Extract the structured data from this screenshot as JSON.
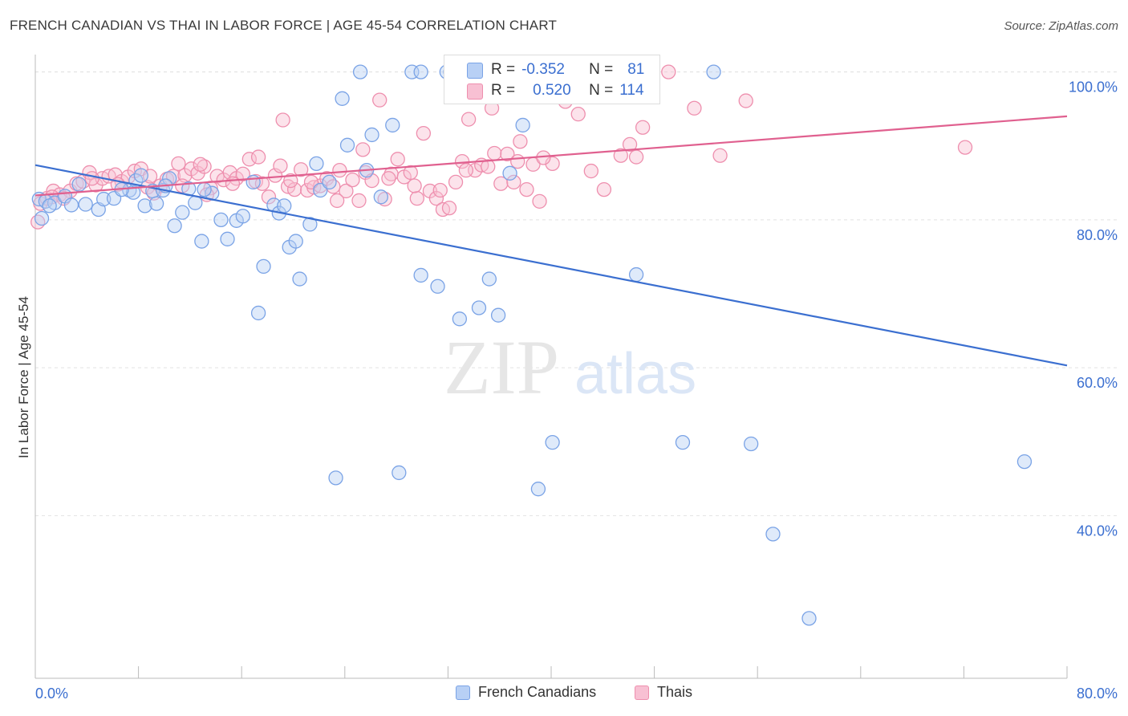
{
  "title": "FRENCH CANADIAN VS THAI IN LABOR FORCE | AGE 45-54 CORRELATION CHART",
  "source": "Source: ZipAtlas.com",
  "watermark": {
    "part1": "ZIP",
    "part2": "atlas"
  },
  "colors": {
    "blue_fill": "#b8d0f5",
    "blue_stroke": "#7aa3e6",
    "blue_line": "#3b6fd0",
    "pink_fill": "#f8c0d3",
    "pink_stroke": "#ee8fae",
    "pink_line": "#e0608f",
    "axis_text": "#3b6fd0",
    "grid": "#e2e2e2"
  },
  "legend": {
    "series1": {
      "r_label": "R =",
      "r_value": "-0.352",
      "n_label": "N =",
      "n_value": "81"
    },
    "series2": {
      "r_label": "R =",
      "r_value": "0.520",
      "n_label": "N =",
      "n_value": "114"
    }
  },
  "chart_data": {
    "type": "scatter",
    "title": "FRENCH CANADIAN VS THAI IN LABOR FORCE | AGE 45-54 CORRELATION CHART",
    "xlabel": "",
    "ylabel": "In Labor Force | Age 45-54",
    "xlim": [
      0,
      80
    ],
    "ylim": [
      18,
      103
    ],
    "x_tick_labels": [
      "0.0%",
      "80.0%"
    ],
    "y_ticks": [
      40,
      60,
      80,
      100
    ],
    "y_tick_labels": [
      "40.0%",
      "60.0%",
      "80.0%",
      "100.0%"
    ],
    "series": [
      {
        "name": "French Canadians",
        "r": -0.352,
        "n": 81,
        "trend": {
          "x": [
            0,
            80
          ],
          "y": [
            87.4,
            60.3
          ]
        },
        "points": [
          [
            0.3,
            82.8
          ],
          [
            0.8,
            82.5
          ],
          [
            1.5,
            82.3
          ],
          [
            2.3,
            83.2
          ],
          [
            2.8,
            82.0
          ],
          [
            3.4,
            84.8
          ],
          [
            4.9,
            81.4
          ],
          [
            5.3,
            82.8
          ],
          [
            6.1,
            82.9
          ],
          [
            7.3,
            84.0
          ],
          [
            7.6,
            83.7
          ],
          [
            7.8,
            85.3
          ],
          [
            8.2,
            86.0
          ],
          [
            8.5,
            81.9
          ],
          [
            9.1,
            83.9
          ],
          [
            9.4,
            82.2
          ],
          [
            9.9,
            84.0
          ],
          [
            10.4,
            85.6
          ],
          [
            10.8,
            79.2
          ],
          [
            11.4,
            81.0
          ],
          [
            11.9,
            84.2
          ],
          [
            12.4,
            82.3
          ],
          [
            12.9,
            77.1
          ],
          [
            13.7,
            83.6
          ],
          [
            14.4,
            80.0
          ],
          [
            14.9,
            77.4
          ],
          [
            15.6,
            79.9
          ],
          [
            16.1,
            80.5
          ],
          [
            16.9,
            85.1
          ],
          [
            17.7,
            73.7
          ],
          [
            17.3,
            67.4
          ],
          [
            18.5,
            82.0
          ],
          [
            18.9,
            80.9
          ],
          [
            19.3,
            81.9
          ],
          [
            19.7,
            76.3
          ],
          [
            20.2,
            77.1
          ],
          [
            20.5,
            72.0
          ],
          [
            21.3,
            79.4
          ],
          [
            21.8,
            87.6
          ],
          [
            22.1,
            84.0
          ],
          [
            22.8,
            85.1
          ],
          [
            23.3,
            45.1
          ],
          [
            23.8,
            96.4
          ],
          [
            24.2,
            90.1
          ],
          [
            25.2,
            100.0
          ],
          [
            25.7,
            86.7
          ],
          [
            26.1,
            91.5
          ],
          [
            26.8,
            83.1
          ],
          [
            27.7,
            92.8
          ],
          [
            28.2,
            45.8
          ],
          [
            29.2,
            100.0
          ],
          [
            29.9,
            100.0
          ],
          [
            29.9,
            72.5
          ],
          [
            31.2,
            71.0
          ],
          [
            31.9,
            100.0
          ],
          [
            32.2,
            100.0
          ],
          [
            32.9,
            66.6
          ],
          [
            34.4,
            68.1
          ],
          [
            35.2,
            72.0
          ],
          [
            35.9,
            67.1
          ],
          [
            36.2,
            100.0
          ],
          [
            36.8,
            86.3
          ],
          [
            37.8,
            92.8
          ],
          [
            39.0,
            43.6
          ],
          [
            40.1,
            49.9
          ],
          [
            44.2,
            100.0
          ],
          [
            45.8,
            100.0
          ],
          [
            46.6,
            72.6
          ],
          [
            50.2,
            49.9
          ],
          [
            52.6,
            100.0
          ],
          [
            55.5,
            49.7
          ],
          [
            57.2,
            37.5
          ],
          [
            60.0,
            26.1
          ],
          [
            76.7,
            47.3
          ],
          [
            0.5,
            80.2
          ],
          [
            1.1,
            81.9
          ],
          [
            3.9,
            82.1
          ],
          [
            6.7,
            84.1
          ],
          [
            10.1,
            84.6
          ],
          [
            13.1,
            84.1
          ],
          [
            34.0,
            100.0
          ]
        ]
      },
      {
        "name": "Thais",
        "r": 0.52,
        "n": 114,
        "trend": {
          "x": [
            0,
            80
          ],
          "y": [
            83.3,
            94.0
          ]
        },
        "points": [
          [
            0.2,
            79.7
          ],
          [
            0.4,
            82.2
          ],
          [
            0.9,
            82.9
          ],
          [
            1.4,
            83.9
          ],
          [
            1.9,
            83.4
          ],
          [
            2.7,
            83.9
          ],
          [
            3.2,
            84.9
          ],
          [
            3.7,
            85.2
          ],
          [
            4.2,
            86.4
          ],
          [
            4.7,
            84.7
          ],
          [
            5.2,
            85.6
          ],
          [
            5.7,
            85.9
          ],
          [
            6.2,
            86.1
          ],
          [
            6.7,
            85.2
          ],
          [
            7.2,
            85.8
          ],
          [
            7.7,
            86.6
          ],
          [
            8.2,
            86.9
          ],
          [
            8.7,
            84.4
          ],
          [
            9.2,
            83.6
          ],
          [
            9.7,
            84.6
          ],
          [
            10.2,
            85.5
          ],
          [
            10.7,
            85.9
          ],
          [
            11.1,
            87.6
          ],
          [
            11.6,
            86.0
          ],
          [
            12.1,
            86.9
          ],
          [
            12.6,
            86.3
          ],
          [
            13.1,
            87.2
          ],
          [
            13.6,
            84.3
          ],
          [
            14.1,
            85.9
          ],
          [
            14.6,
            85.4
          ],
          [
            15.1,
            86.4
          ],
          [
            15.6,
            85.6
          ],
          [
            16.1,
            86.2
          ],
          [
            16.6,
            88.2
          ],
          [
            17.1,
            85.2
          ],
          [
            17.6,
            84.9
          ],
          [
            18.1,
            83.1
          ],
          [
            18.6,
            86.0
          ],
          [
            19.0,
            87.3
          ],
          [
            19.2,
            93.5
          ],
          [
            19.6,
            84.5
          ],
          [
            20.1,
            84.1
          ],
          [
            20.6,
            86.8
          ],
          [
            21.1,
            84.0
          ],
          [
            21.6,
            84.4
          ],
          [
            22.1,
            84.6
          ],
          [
            22.6,
            85.6
          ],
          [
            23.1,
            84.5
          ],
          [
            23.6,
            86.7
          ],
          [
            24.1,
            83.9
          ],
          [
            24.6,
            85.4
          ],
          [
            25.1,
            82.6
          ],
          [
            25.6,
            86.4
          ],
          [
            26.1,
            85.3
          ],
          [
            26.7,
            96.2
          ],
          [
            27.1,
            82.8
          ],
          [
            27.6,
            86.2
          ],
          [
            28.1,
            88.2
          ],
          [
            28.6,
            85.8
          ],
          [
            29.1,
            86.4
          ],
          [
            29.6,
            82.9
          ],
          [
            30.1,
            91.7
          ],
          [
            30.6,
            83.9
          ],
          [
            31.1,
            82.9
          ],
          [
            31.6,
            81.4
          ],
          [
            32.1,
            81.6
          ],
          [
            32.6,
            85.1
          ],
          [
            33.1,
            87.9
          ],
          [
            33.6,
            93.6
          ],
          [
            34.1,
            86.7
          ],
          [
            34.6,
            87.4
          ],
          [
            35.1,
            87.2
          ],
          [
            35.6,
            89.0
          ],
          [
            36.1,
            84.9
          ],
          [
            36.6,
            88.9
          ],
          [
            37.1,
            85.1
          ],
          [
            37.6,
            90.6
          ],
          [
            38.1,
            84.1
          ],
          [
            38.6,
            87.5
          ],
          [
            39.1,
            82.5
          ],
          [
            40.1,
            87.6
          ],
          [
            41.1,
            96.0
          ],
          [
            42.1,
            94.3
          ],
          [
            43.1,
            86.6
          ],
          [
            44.1,
            84.1
          ],
          [
            46.1,
            90.2
          ],
          [
            46.6,
            88.5
          ],
          [
            47.1,
            92.5
          ],
          [
            49.1,
            100.0
          ],
          [
            51.1,
            95.1
          ],
          [
            53.1,
            88.7
          ],
          [
            55.1,
            96.1
          ],
          [
            72.1,
            89.8
          ],
          [
            1.3,
            83.1
          ],
          [
            2.2,
            82.9
          ],
          [
            4.4,
            85.6
          ],
          [
            6.4,
            84.8
          ],
          [
            8.9,
            85.9
          ],
          [
            11.4,
            84.6
          ],
          [
            13.3,
            83.4
          ],
          [
            15.3,
            84.9
          ],
          [
            17.3,
            88.5
          ],
          [
            19.8,
            85.3
          ],
          [
            21.4,
            85.1
          ],
          [
            23.4,
            82.6
          ],
          [
            25.4,
            89.5
          ],
          [
            27.4,
            85.6
          ],
          [
            29.4,
            84.6
          ],
          [
            31.4,
            84.0
          ],
          [
            33.4,
            86.7
          ],
          [
            35.4,
            95.1
          ],
          [
            37.4,
            87.9
          ],
          [
            39.4,
            88.4
          ],
          [
            45.4,
            88.7
          ],
          [
            12.8,
            87.5
          ]
        ]
      }
    ]
  }
}
